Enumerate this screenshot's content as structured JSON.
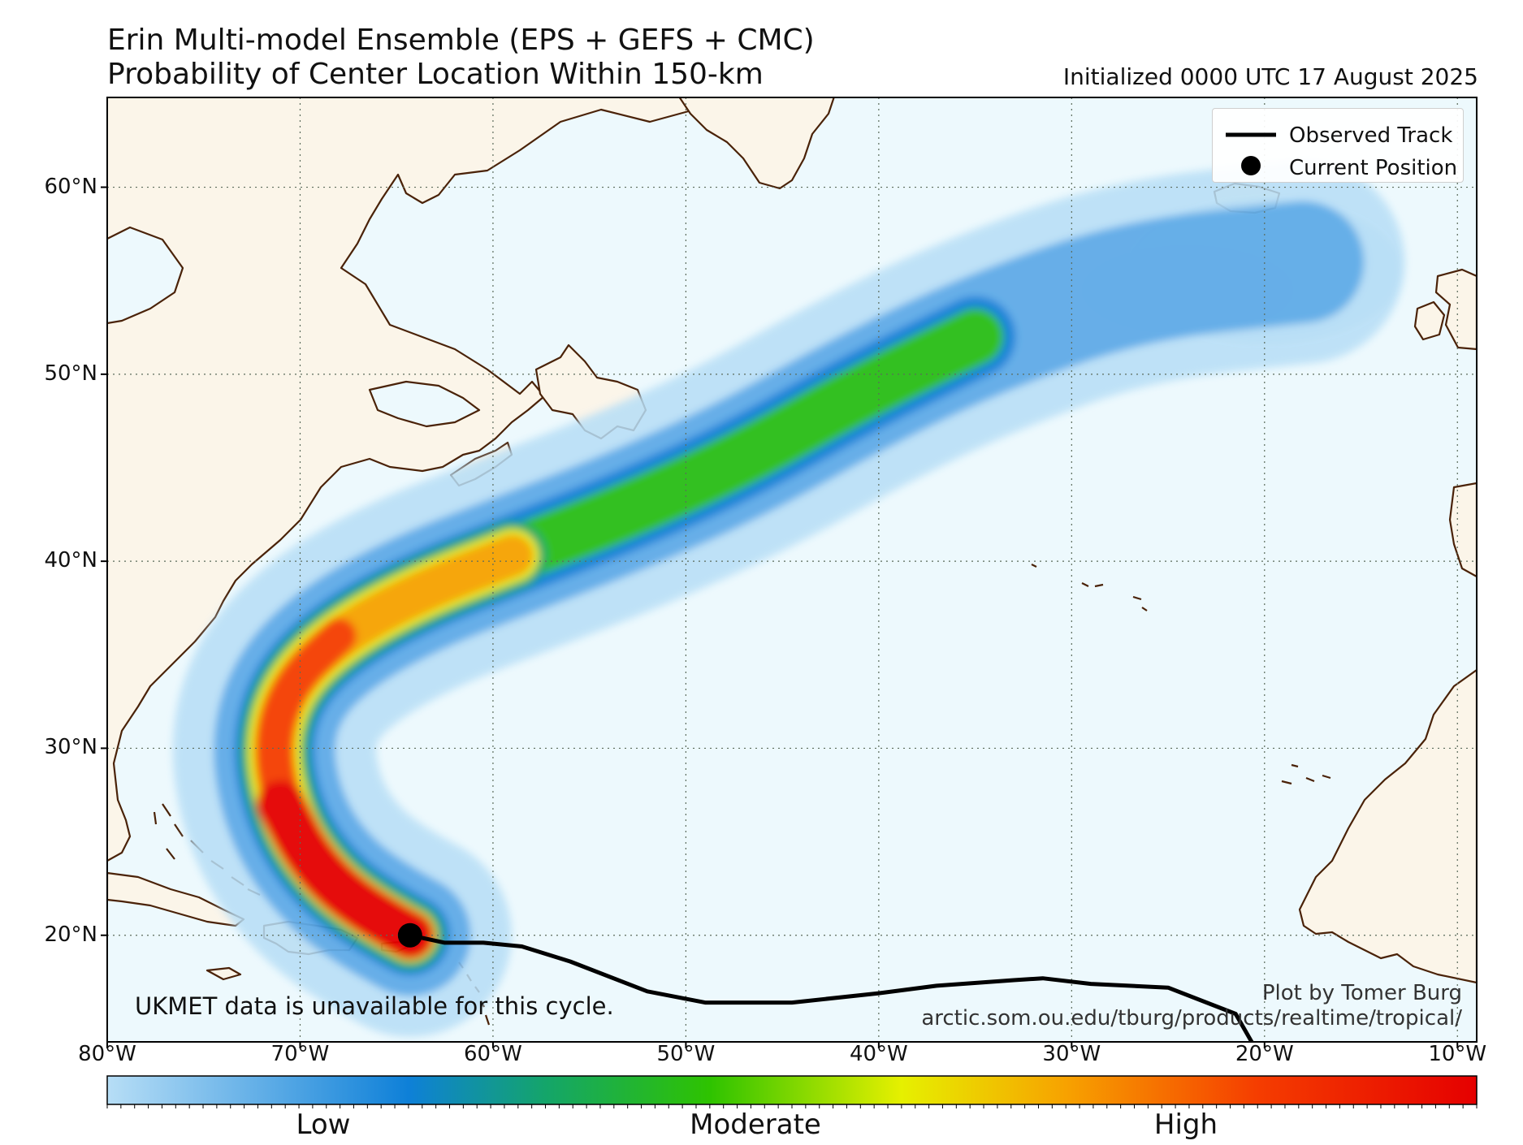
{
  "title_line1": "Erin Multi-model Ensemble (EPS + GEFS + CMC)",
  "title_line2": "Probability of Center Location Within 150-km",
  "initialized": "Initialized 0000 UTC 17 August 2025",
  "lat_labels": [
    {
      "lat": 60,
      "text": "60°N"
    },
    {
      "lat": 50,
      "text": "50°N"
    },
    {
      "lat": 40,
      "text": "40°N"
    },
    {
      "lat": 30,
      "text": "30°N"
    },
    {
      "lat": 20,
      "text": "20°N"
    }
  ],
  "lon_labels": [
    {
      "lon": -80,
      "text": "80°W"
    },
    {
      "lon": -70,
      "text": "70°W"
    },
    {
      "lon": -60,
      "text": "60°W"
    },
    {
      "lon": -50,
      "text": "50°W"
    },
    {
      "lon": -40,
      "text": "40°W"
    },
    {
      "lon": -30,
      "text": "30°W"
    },
    {
      "lon": -20,
      "text": "20°W"
    },
    {
      "lon": -10,
      "text": "10°W"
    }
  ],
  "extent": {
    "lon_min": -80,
    "lon_max": -9,
    "lat_min": 14.3,
    "lat_max": 64.8
  },
  "legend": {
    "observed_track": "Observed Track",
    "current_position": "Current Position"
  },
  "note": "UKMET data is unavailable for this cycle.",
  "credit_line1": "Plot by Tomer Burg",
  "credit_line2": "arctic.som.ou.edu/tburg/products/realtime/tropical/",
  "colorbar": {
    "labels": [
      "Low",
      "Moderate",
      "High"
    ],
    "colors": [
      "#b7def6",
      "#0e80d8",
      "#14a56a",
      "#2ec300",
      "#e6f000",
      "#f7a200",
      "#f53d00",
      "#e50000"
    ]
  },
  "current_position": {
    "lon": -64.3,
    "lat": 20.0
  },
  "observed_track": [
    [
      -64.3,
      20.0
    ],
    [
      -62.5,
      19.6
    ],
    [
      -60.5,
      19.6
    ],
    [
      -58.5,
      19.4
    ],
    [
      -56,
      18.6
    ],
    [
      -52,
      17.0
    ],
    [
      -49,
      16.4
    ],
    [
      -44.5,
      16.4
    ],
    [
      -40,
      16.9
    ],
    [
      -37,
      17.3
    ],
    [
      -33,
      17.6
    ],
    [
      -31.5,
      17.7
    ],
    [
      -29,
      17.4
    ],
    [
      -25,
      17.2
    ],
    [
      -21.5,
      15.8
    ],
    [
      -20.5,
      14.0
    ]
  ],
  "probability_axis": [
    [
      -64.3,
      20.0
    ],
    [
      -67,
      21.5
    ],
    [
      -69.5,
      24
    ],
    [
      -71,
      27
    ],
    [
      -71.5,
      30.5
    ],
    [
      -70.5,
      33.5
    ],
    [
      -68,
      36
    ],
    [
      -64,
      38.3
    ],
    [
      -59,
      40.3
    ],
    [
      -53,
      42.7
    ],
    [
      -47,
      45.5
    ],
    [
      -41,
      49
    ],
    [
      -35,
      52
    ],
    [
      -27,
      55
    ],
    [
      -18,
      56
    ]
  ],
  "colors": {
    "ocean": "#edf9fd",
    "land": "#fbf5e9",
    "coast": "#4a2208",
    "track": "#000000"
  }
}
